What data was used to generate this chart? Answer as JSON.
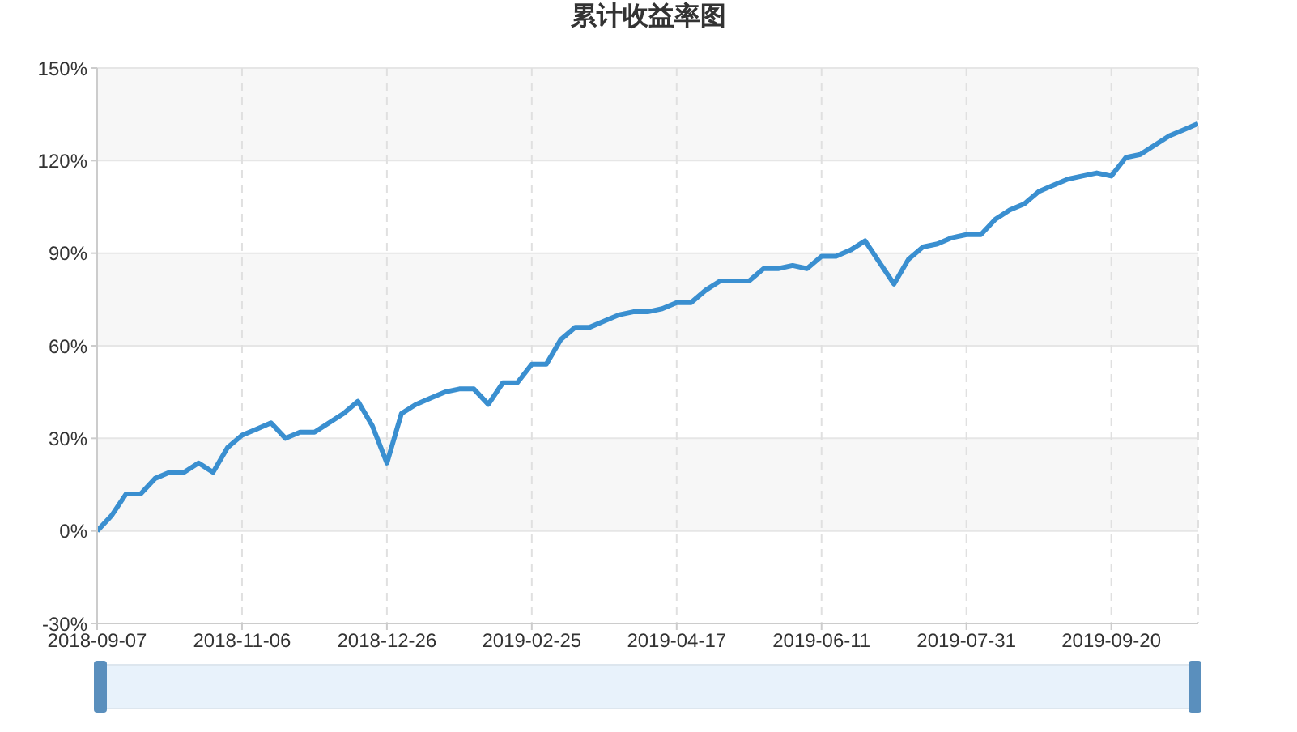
{
  "chart_data": {
    "type": "line",
    "title": "累计收益率图",
    "categories": [
      "2018-09-07",
      null,
      null,
      null,
      null,
      null,
      null,
      null,
      null,
      null,
      "2018-11-06",
      null,
      null,
      null,
      null,
      null,
      null,
      null,
      null,
      null,
      "2018-12-26",
      null,
      null,
      null,
      null,
      null,
      null,
      null,
      null,
      null,
      "2019-02-25",
      null,
      null,
      null,
      null,
      null,
      null,
      null,
      null,
      null,
      "2019-04-17",
      null,
      null,
      null,
      null,
      null,
      null,
      null,
      null,
      null,
      "2019-06-11",
      null,
      null,
      null,
      null,
      null,
      null,
      null,
      null,
      null,
      "2019-07-31",
      null,
      null,
      null,
      null,
      null,
      null,
      null,
      null,
      null,
      "2019-09-20",
      null,
      null,
      null,
      null,
      null,
      null
    ],
    "series": [
      {
        "color": "#3a8fd0",
        "values": [
          0,
          5,
          12,
          12,
          17,
          19,
          19,
          22,
          19,
          27,
          31,
          33,
          35,
          30,
          32,
          32,
          35,
          38,
          42,
          34,
          22,
          38,
          41,
          43,
          45,
          46,
          46,
          41,
          48,
          48,
          54,
          54,
          62,
          66,
          66,
          68,
          70,
          71,
          71,
          72,
          74,
          74,
          78,
          81,
          81,
          81,
          85,
          85,
          86,
          85,
          89,
          89,
          91,
          94,
          87,
          80,
          88,
          92,
          93,
          95,
          96,
          96,
          101,
          104,
          106,
          110,
          112,
          114,
          115,
          116,
          115,
          121,
          122,
          125,
          128,
          130,
          132
        ]
      }
    ],
    "ylim": [
      -30,
      150
    ],
    "yticks": [
      {
        "value": -30,
        "label": "-30%"
      },
      {
        "value": 0,
        "label": "0%"
      },
      {
        "value": 30,
        "label": "30%"
      },
      {
        "value": 60,
        "label": "60%"
      },
      {
        "value": 90,
        "label": "90%"
      },
      {
        "value": 120,
        "label": "120%"
      },
      {
        "value": 150,
        "label": "150%"
      }
    ],
    "grid": true,
    "marker": "none",
    "line_style": "solid"
  }
}
